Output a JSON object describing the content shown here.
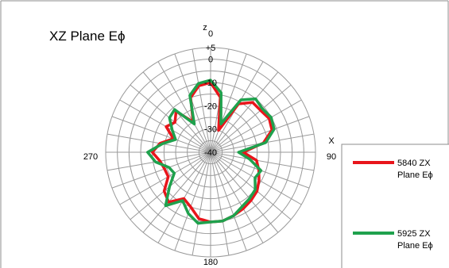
{
  "chart_data": {
    "type": "polar-line",
    "title": "XZ Plane Eϕ",
    "axis_labels": {
      "top": "z",
      "right": "X"
    },
    "angle_labels": {
      "top": "0",
      "right": "90",
      "bottom": "180",
      "left": "270"
    },
    "radial_ticks": [
      "+5",
      "0",
      "-10",
      "-20",
      "-30",
      "-40"
    ],
    "radial_range": [
      -40,
      5
    ],
    "angular_step_deg": 10,
    "legend_position": "right",
    "angles_deg": [
      0,
      10,
      20,
      30,
      40,
      50,
      60,
      70,
      80,
      90,
      100,
      110,
      120,
      130,
      140,
      150,
      160,
      170,
      180,
      190,
      200,
      210,
      220,
      230,
      240,
      250,
      260,
      270,
      280,
      290,
      300,
      310,
      320,
      330,
      340,
      350
    ],
    "series": [
      {
        "name": "5840 ZX Plane Eϕ",
        "color": "#e8151b",
        "values": [
          -10,
          -16,
          -30,
          -16,
          -12,
          -12,
          -11,
          -12,
          -17,
          -26,
          -20,
          -18,
          -16,
          -14,
          -13,
          -12,
          -11,
          -10,
          -10,
          -11,
          -15,
          -17,
          -12,
          -14,
          -19,
          -19,
          -18,
          -15,
          -18,
          -23,
          -18,
          -20,
          -17,
          -25,
          -15,
          -11
        ]
      },
      {
        "name": "5925 ZX Plane Eϕ",
        "color": "#1fa14d",
        "values": [
          -9,
          -14,
          -27,
          -14,
          -10,
          -11,
          -10,
          -11,
          -16,
          -28,
          -23,
          -17,
          -18,
          -15,
          -14,
          -13,
          -11,
          -10,
          -10,
          -9,
          -12,
          -16,
          -10,
          -17,
          -22,
          -21,
          -16,
          -13,
          -19,
          -24,
          -21,
          -17,
          -16,
          -26,
          -14,
          -10
        ]
      }
    ]
  }
}
